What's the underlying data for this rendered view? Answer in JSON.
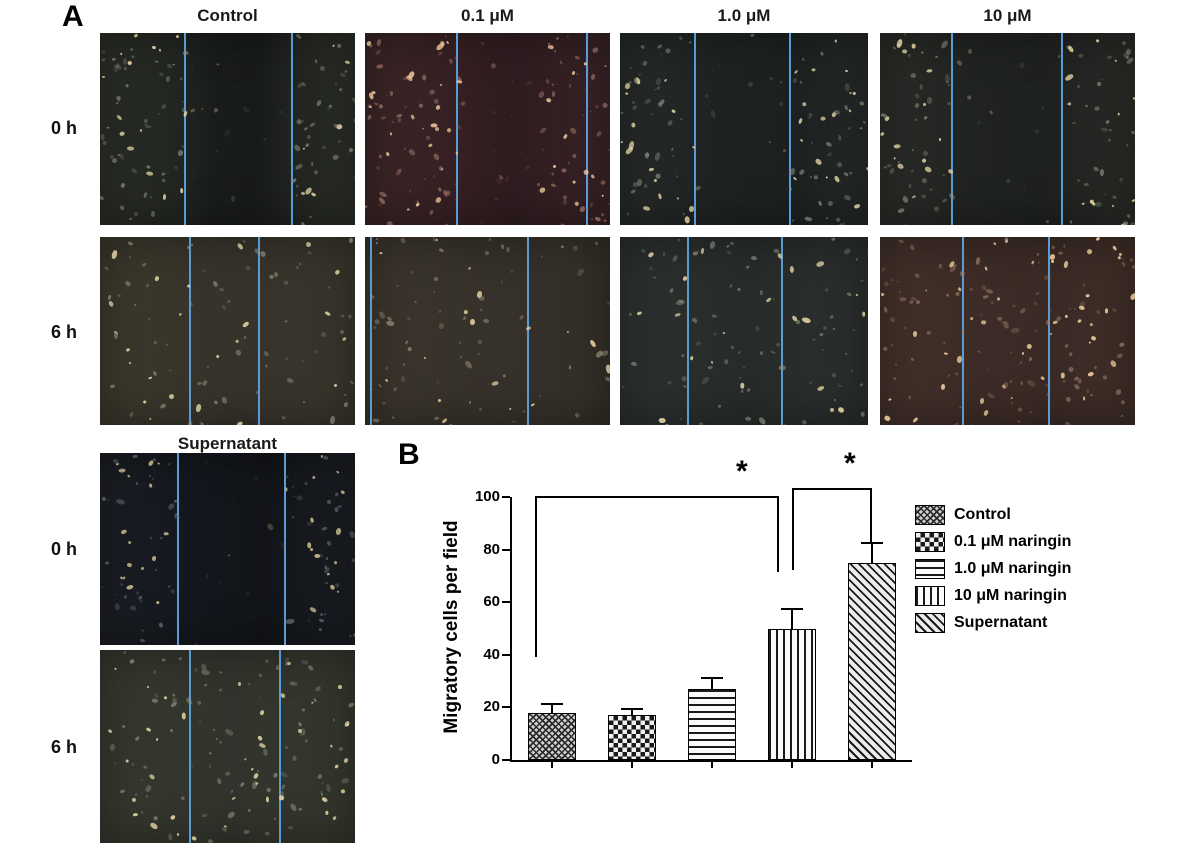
{
  "figure": {
    "panel_a": {
      "label": "A",
      "column_headers": [
        "Control",
        "0.1 μM",
        "1.0 μM",
        "10 μM"
      ],
      "row_labels": {
        "row1": "0 h",
        "row2": "6 h"
      },
      "supernatant": {
        "header": "Supernatant",
        "row_labels": {
          "row1": "0 h",
          "row2": "6 h"
        }
      }
    },
    "panel_b": {
      "label": "B"
    }
  },
  "chart_data": {
    "type": "bar",
    "title": "",
    "categories": [
      "Control",
      "0.1 μM naringin",
      "1.0 μM naringin",
      "10 μM naringin",
      "Supernatant"
    ],
    "values": [
      18,
      17,
      27,
      50,
      75
    ],
    "errors_sd": [
      3,
      2,
      4,
      7,
      7
    ],
    "ylabel": "Migratory cells per field",
    "xlabel": "",
    "ylim": [
      0,
      100
    ],
    "yticks": [
      0,
      20,
      40,
      60,
      80,
      100
    ],
    "grid": false,
    "legend_position": "right",
    "bar_patterns": [
      "crosshatch",
      "checker",
      "hlines",
      "vlines",
      "diag"
    ],
    "legend": [
      {
        "label": "Control",
        "pattern": "crosshatch"
      },
      {
        "label": "0.1 μM naringin",
        "pattern": "checker"
      },
      {
        "label": "1.0 μM naringin",
        "pattern": "hlines"
      },
      {
        "label": "10 μM naringin",
        "pattern": "vlines"
      },
      {
        "label": "Supernatant",
        "pattern": "diag"
      }
    ],
    "significance": [
      {
        "label": "*",
        "between": [
          "Control",
          "10 μM naringin"
        ]
      },
      {
        "label": "*",
        "between": [
          "10 μM naringin",
          "Supernatant"
        ]
      }
    ]
  },
  "colors": {
    "scratch_line": "#5b9bd5",
    "axis": "#000000",
    "hatch_ink": "#1a1a1a"
  }
}
